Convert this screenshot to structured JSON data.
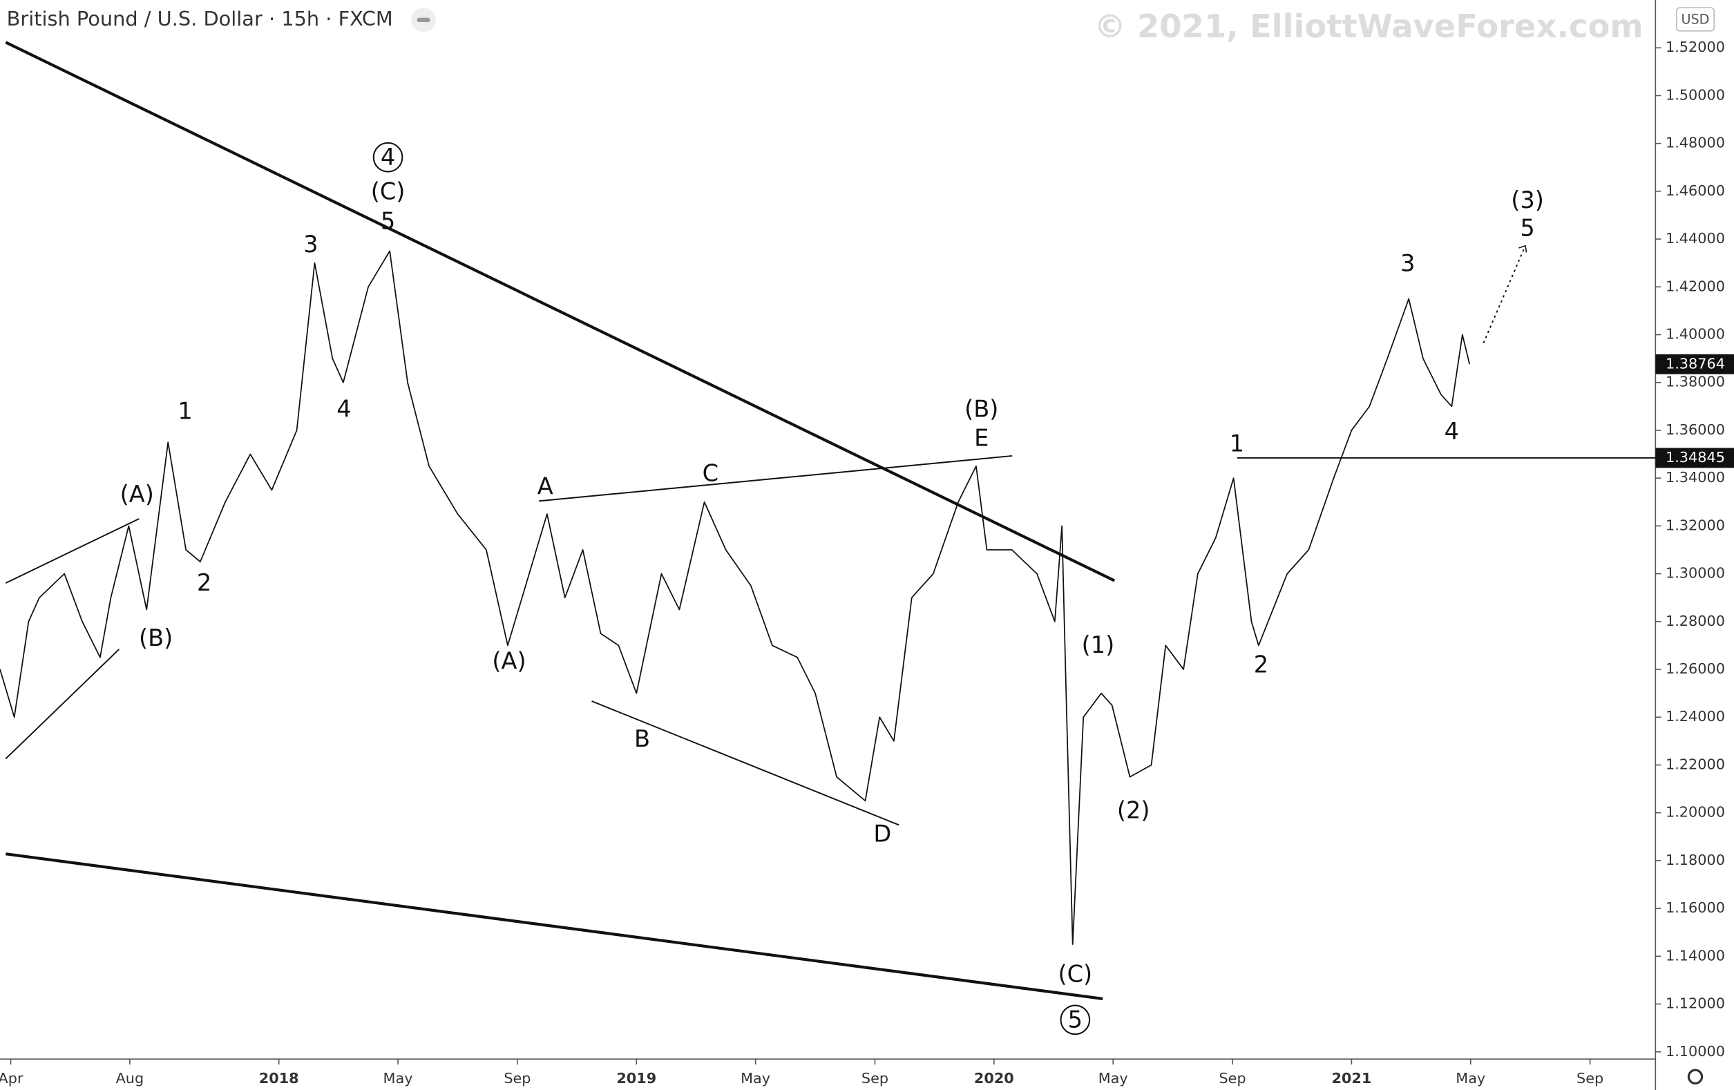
{
  "chart_data": {
    "type": "line",
    "title": "British Pound / U.S. Dollar · 15h · FXCM",
    "watermark": "© 2021, ElliottWaveForex.com",
    "currency": "USD",
    "color": "#111111",
    "xlim": [
      2017.22,
      2021.85
    ],
    "ylim": [
      1.097,
      1.54
    ],
    "xticks": [
      {
        "value": 2017.25,
        "label": "Apr"
      },
      {
        "value": 2017.583,
        "label": "Aug"
      },
      {
        "value": 2018.0,
        "label": "2018"
      },
      {
        "value": 2018.333,
        "label": "May"
      },
      {
        "value": 2018.667,
        "label": "Sep"
      },
      {
        "value": 2019.0,
        "label": "2019"
      },
      {
        "value": 2019.333,
        "label": "May"
      },
      {
        "value": 2019.667,
        "label": "Sep"
      },
      {
        "value": 2020.0,
        "label": "2020"
      },
      {
        "value": 2020.333,
        "label": "May"
      },
      {
        "value": 2020.667,
        "label": "Sep"
      },
      {
        "value": 2021.0,
        "label": "2021"
      },
      {
        "value": 2021.333,
        "label": "May"
      },
      {
        "value": 2021.667,
        "label": "Sep"
      }
    ],
    "yticks": [
      {
        "value": 1.1,
        "label": "1.10000"
      },
      {
        "value": 1.12,
        "label": "1.12000"
      },
      {
        "value": 1.14,
        "label": "1.14000"
      },
      {
        "value": 1.16,
        "label": "1.16000"
      },
      {
        "value": 1.18,
        "label": "1.18000"
      },
      {
        "value": 1.2,
        "label": "1.20000"
      },
      {
        "value": 1.22,
        "label": "1.22000"
      },
      {
        "value": 1.24,
        "label": "1.24000"
      },
      {
        "value": 1.26,
        "label": "1.26000"
      },
      {
        "value": 1.28,
        "label": "1.28000"
      },
      {
        "value": 1.3,
        "label": "1.30000"
      },
      {
        "value": 1.32,
        "label": "1.32000"
      },
      {
        "value": 1.34,
        "label": "1.34000"
      },
      {
        "value": 1.36,
        "label": "1.36000"
      },
      {
        "value": 1.38,
        "label": "1.38000"
      },
      {
        "value": 1.4,
        "label": "1.40000"
      },
      {
        "value": 1.42,
        "label": "1.42000"
      },
      {
        "value": 1.44,
        "label": "1.44000"
      },
      {
        "value": 1.46,
        "label": "1.46000"
      },
      {
        "value": 1.48,
        "label": "1.48000"
      },
      {
        "value": 1.5,
        "label": "1.50000"
      },
      {
        "value": 1.52,
        "label": "1.52000"
      }
    ],
    "x": [
      2017.22,
      2017.26,
      2017.3,
      2017.33,
      2017.4,
      2017.45,
      2017.5,
      2017.53,
      2017.58,
      2017.63,
      2017.69,
      2017.74,
      2017.78,
      2017.85,
      2017.92,
      2017.98,
      2018.05,
      2018.1,
      2018.15,
      2018.18,
      2018.25,
      2018.31,
      2018.36,
      2018.42,
      2018.5,
      2018.58,
      2018.64,
      2018.7,
      2018.75,
      2018.8,
      2018.85,
      2018.9,
      2018.95,
      2019.0,
      2019.07,
      2019.12,
      2019.19,
      2019.25,
      2019.32,
      2019.38,
      2019.45,
      2019.5,
      2019.56,
      2019.64,
      2019.68,
      2019.72,
      2019.77,
      2019.83,
      2019.9,
      2019.95,
      2019.98,
      2020.05,
      2020.12,
      2020.17,
      2020.19,
      2020.2,
      2020.22,
      2020.25,
      2020.3,
      2020.33,
      2020.38,
      2020.44,
      2020.48,
      2020.53,
      2020.57,
      2020.62,
      2020.67,
      2020.72,
      2020.74,
      2020.82,
      2020.88,
      2020.95,
      2021.0,
      2021.05,
      2021.1,
      2021.16,
      2021.2,
      2021.25,
      2021.28,
      2021.31,
      2021.33
    ],
    "values": [
      1.26,
      1.24,
      1.28,
      1.29,
      1.3,
      1.28,
      1.265,
      1.29,
      1.32,
      1.285,
      1.355,
      1.31,
      1.305,
      1.33,
      1.35,
      1.335,
      1.36,
      1.43,
      1.39,
      1.38,
      1.42,
      1.435,
      1.38,
      1.345,
      1.325,
      1.31,
      1.27,
      1.3,
      1.325,
      1.29,
      1.31,
      1.275,
      1.27,
      1.25,
      1.3,
      1.285,
      1.33,
      1.31,
      1.295,
      1.27,
      1.265,
      1.25,
      1.215,
      1.205,
      1.24,
      1.23,
      1.29,
      1.3,
      1.33,
      1.345,
      1.31,
      1.31,
      1.3,
      1.28,
      1.32,
      1.26,
      1.145,
      1.24,
      1.25,
      1.245,
      1.215,
      1.22,
      1.27,
      1.26,
      1.3,
      1.315,
      1.34,
      1.28,
      1.27,
      1.3,
      1.31,
      1.34,
      1.36,
      1.37,
      1.39,
      1.415,
      1.39,
      1.375,
      1.37,
      1.4,
      1.38764
    ],
    "last_price": 1.38764,
    "hline": {
      "x": 2020.68,
      "y": 1.34845
    },
    "trendlines": [
      {
        "x": [
          2017.236,
          2020.337
        ],
        "y": [
          1.5223,
          1.2971
        ],
        "style": "thick"
      },
      {
        "x": [
          2017.236,
          2020.304
        ],
        "y": [
          1.1828,
          1.1222
        ],
        "style": "thick"
      },
      {
        "x": [
          2018.727,
          2020.051
        ],
        "y": [
          1.3304,
          1.3493
        ],
        "style": "thin"
      },
      {
        "x": [
          2018.875,
          2019.734
        ],
        "y": [
          1.2467,
          1.1949
        ],
        "style": "thin"
      },
      {
        "x": [
          2017.236,
          2017.609
        ],
        "y": [
          1.2961,
          1.323
        ],
        "style": "thin"
      },
      {
        "x": [
          2017.236,
          2017.553
        ],
        "y": [
          1.2226,
          1.2684
        ],
        "style": "thin"
      },
      {
        "x": [
          2021.369,
          2021.486
        ],
        "y": [
          1.3965,
          1.4372
        ],
        "style": "dotted"
      }
    ],
    "annotations": [
      {
        "text": "4",
        "x": 2018.305,
        "y": 1.4742,
        "circled": true
      },
      {
        "text": "(C)",
        "x": 2018.305,
        "y": 1.4599
      },
      {
        "text": "5",
        "x": 2018.305,
        "y": 1.4474
      },
      {
        "text": "3",
        "x": 2018.089,
        "y": 1.4377
      },
      {
        "text": "4",
        "x": 2018.182,
        "y": 1.3688
      },
      {
        "text": "1",
        "x": 2017.738,
        "y": 1.3679
      },
      {
        "text": "(A)",
        "x": 2017.603,
        "y": 1.3332
      },
      {
        "text": "2",
        "x": 2017.791,
        "y": 1.2962
      },
      {
        "text": "(B)",
        "x": 2017.656,
        "y": 1.273
      },
      {
        "text": "(A)",
        "x": 2018.644,
        "y": 1.2633
      },
      {
        "text": "A",
        "x": 2018.745,
        "y": 1.3364
      },
      {
        "text": "B",
        "x": 2019.016,
        "y": 1.2309
      },
      {
        "text": "C",
        "x": 2019.207,
        "y": 1.342
      },
      {
        "text": "D",
        "x": 2019.688,
        "y": 1.1911
      },
      {
        "text": "(B)",
        "x": 2019.965,
        "y": 1.3688
      },
      {
        "text": "E",
        "x": 2019.965,
        "y": 1.3567
      },
      {
        "text": "(1)",
        "x": 2020.291,
        "y": 1.2702
      },
      {
        "text": "(2)",
        "x": 2020.39,
        "y": 1.2009
      },
      {
        "text": "(C)",
        "x": 2020.227,
        "y": 1.1324
      },
      {
        "text": "5",
        "x": 2020.227,
        "y": 1.1134,
        "circled": true
      },
      {
        "text": "1",
        "x": 2020.679,
        "y": 1.3544
      },
      {
        "text": "2",
        "x": 2020.747,
        "y": 1.2619
      },
      {
        "text": "3",
        "x": 2021.157,
        "y": 1.4298
      },
      {
        "text": "4",
        "x": 2021.28,
        "y": 1.3595
      },
      {
        "text": "(3)",
        "x": 2021.492,
        "y": 1.4562
      },
      {
        "text": "5",
        "x": 2021.492,
        "y": 1.4446
      }
    ]
  }
}
